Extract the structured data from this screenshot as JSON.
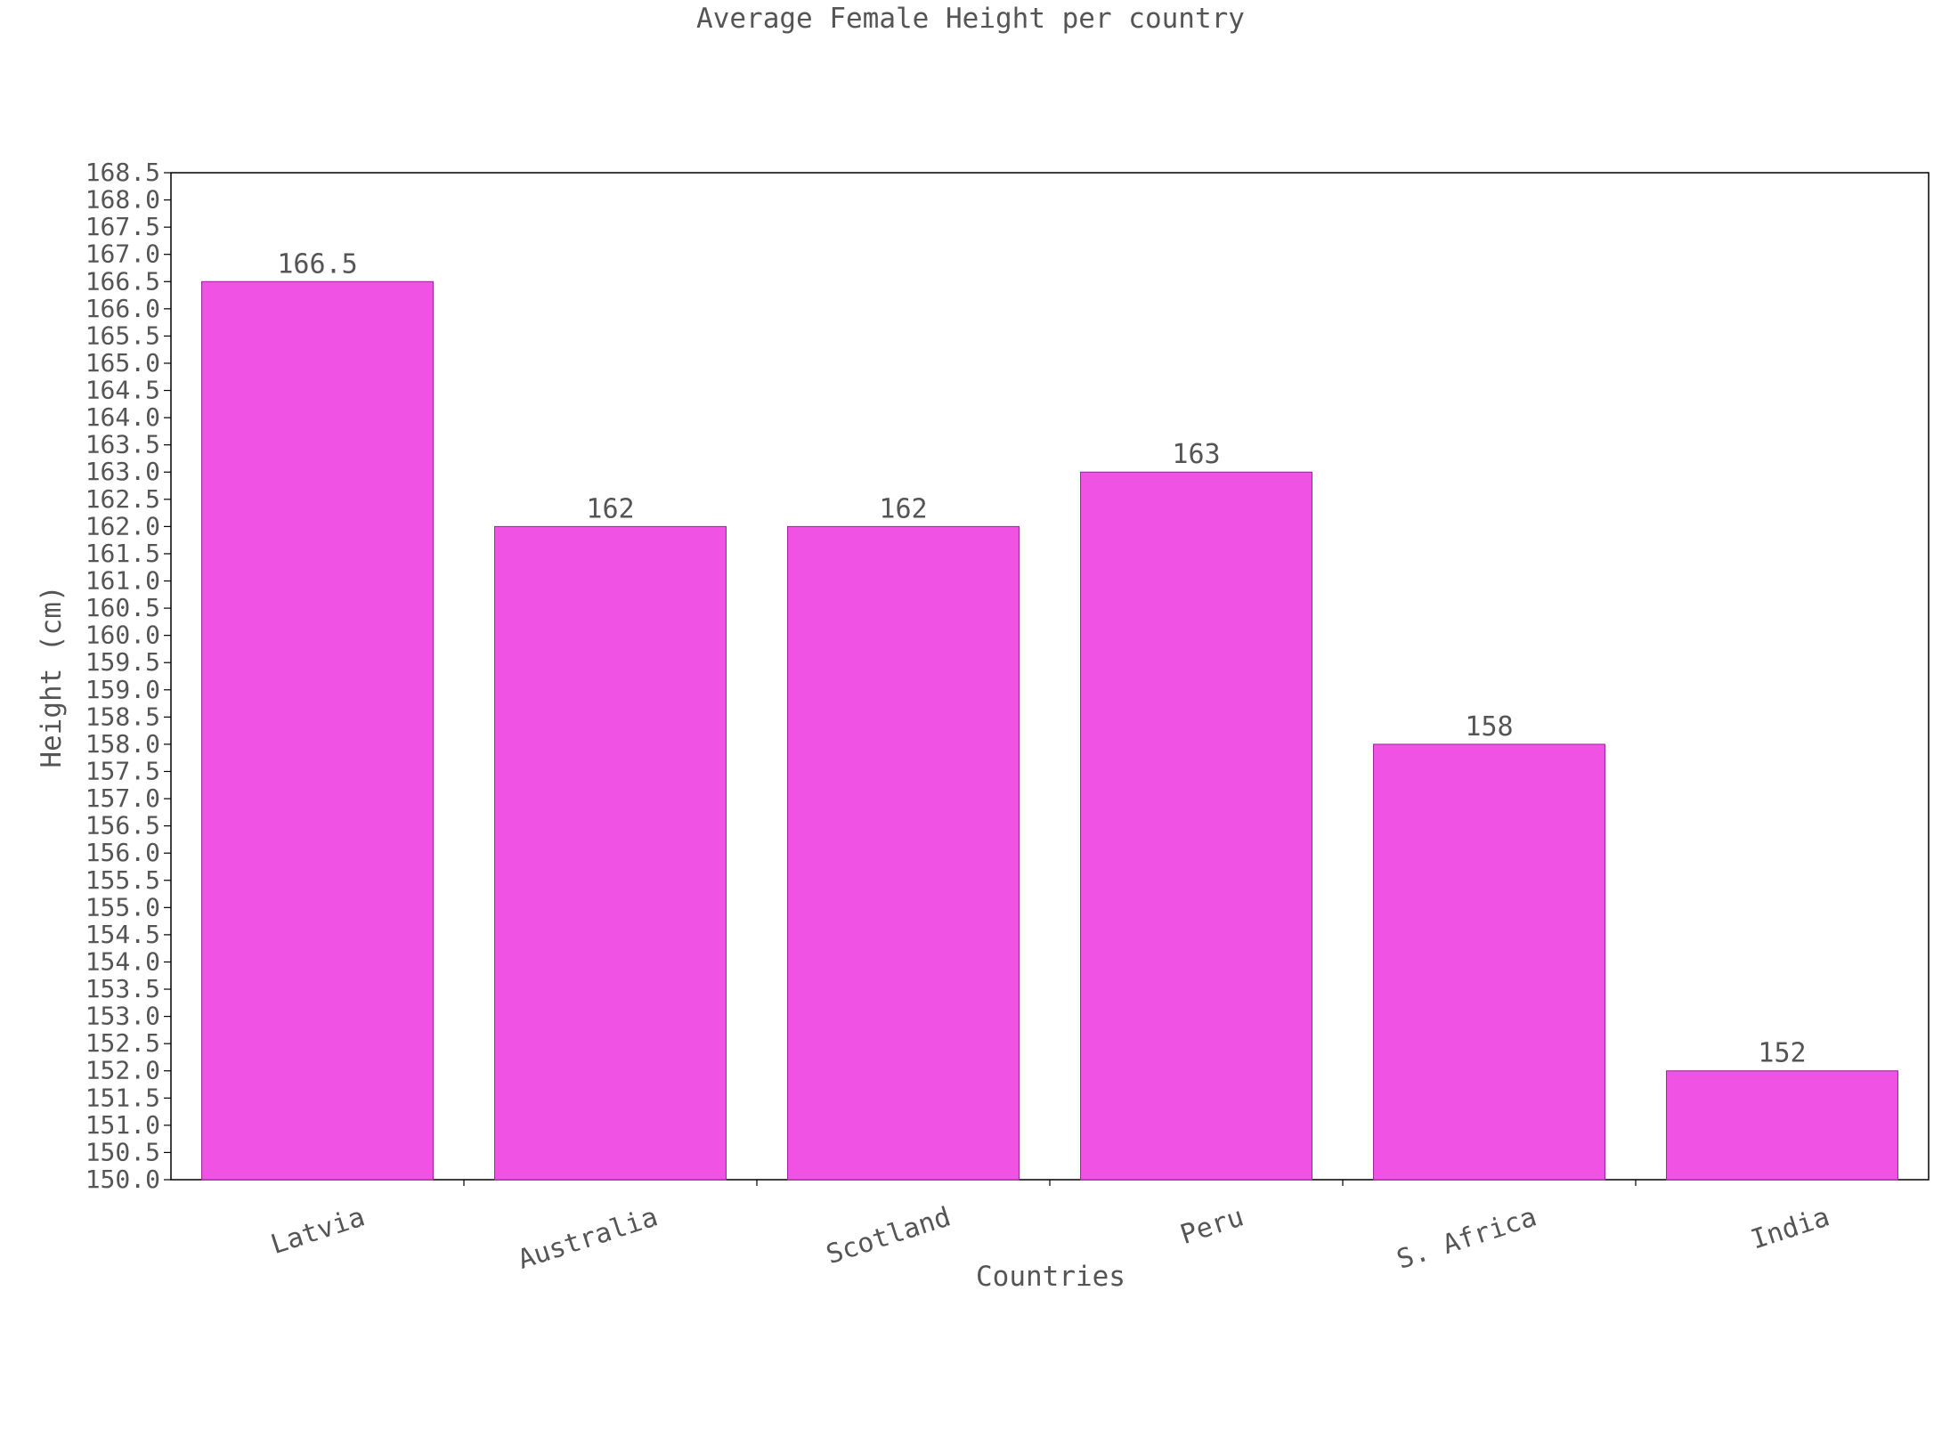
{
  "chart_data": {
    "type": "bar",
    "title": "Average Female Height per country",
    "xlabel": "Countries",
    "ylabel": "Height (cm)",
    "categories": [
      "Latvia",
      "Australia",
      "Scotland",
      "Peru",
      "S. Africa",
      "India"
    ],
    "values": [
      166.5,
      162,
      162,
      163,
      158,
      152
    ],
    "value_labels": [
      "166.5",
      "162",
      "162",
      "163",
      "158",
      "152"
    ],
    "ylim": [
      150.0,
      168.5
    ],
    "ytick_step": 0.5,
    "grid": false,
    "legend": "none",
    "bar_color": "#f052e3",
    "bar_edge_color": "#a020a0"
  }
}
